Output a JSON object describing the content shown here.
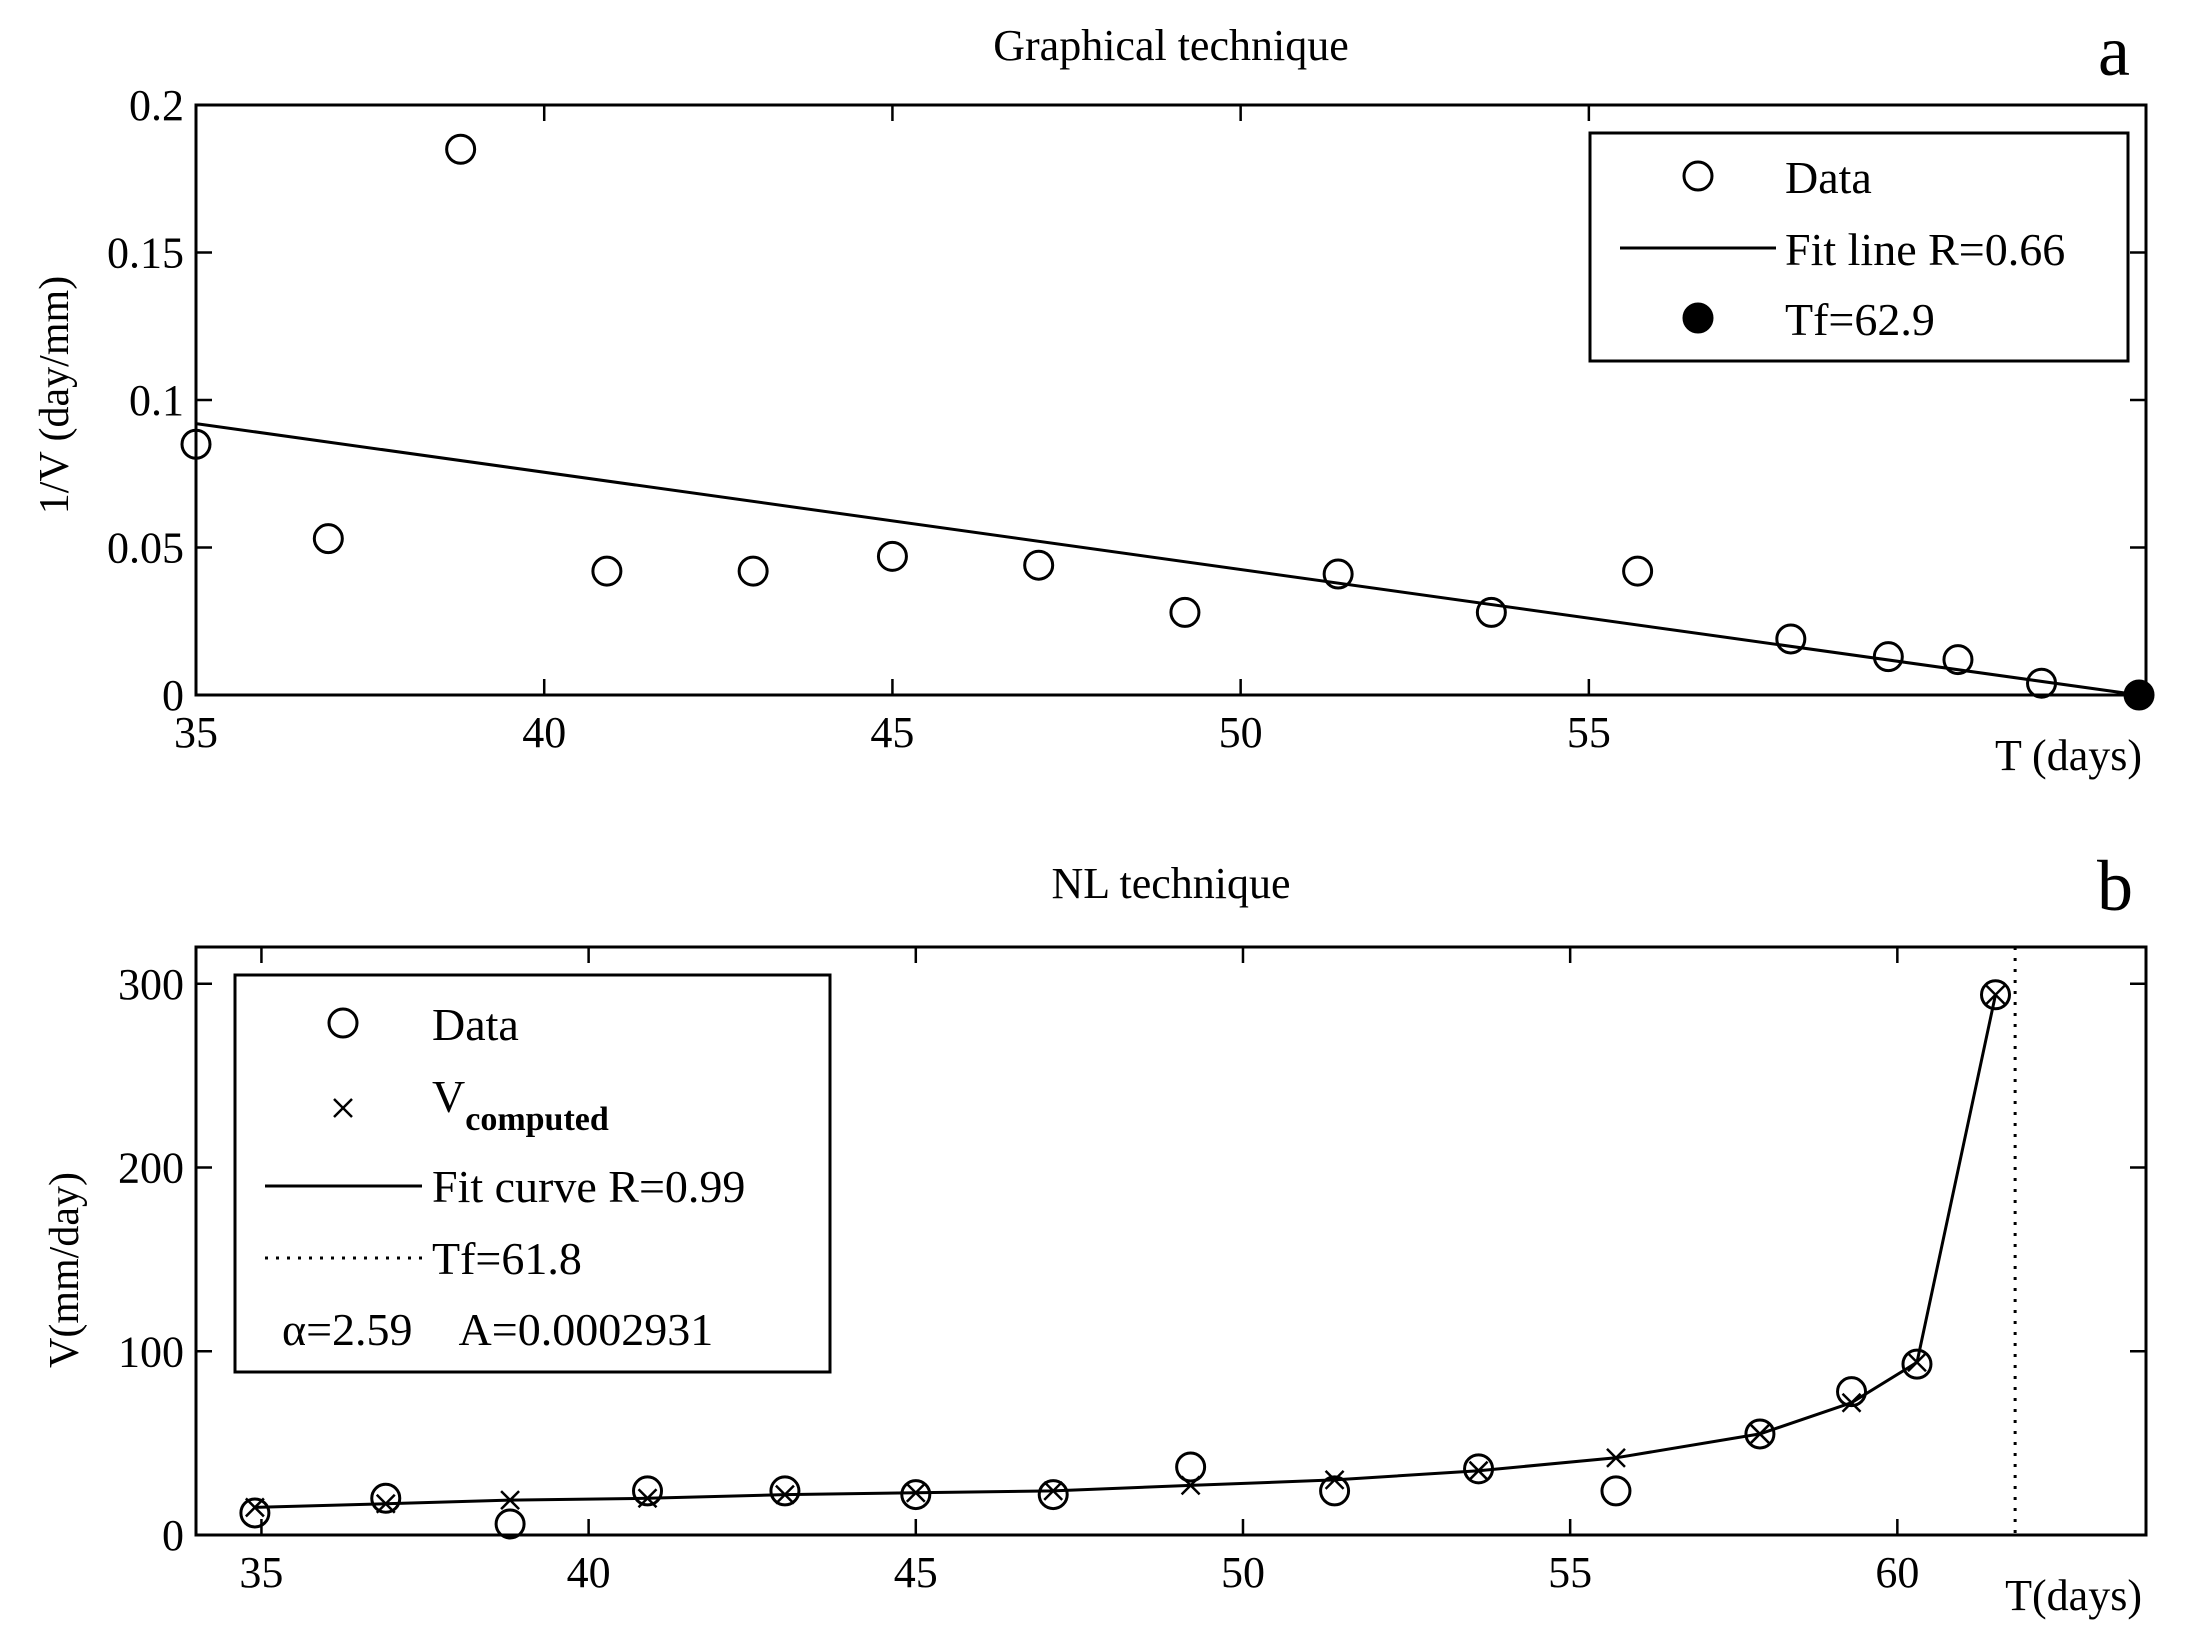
{
  "chart_data": [
    {
      "type": "scatter",
      "panel_letter": "a",
      "title": "Graphical technique",
      "xlabel": "T (days)",
      "ylabel": "1/V (day/mm)",
      "xlim": [
        35,
        63.0
      ],
      "ylim": [
        0,
        0.2
      ],
      "xticks": [
        35,
        40,
        45,
        50,
        55
      ],
      "yticks": [
        0,
        0.05,
        0.1,
        0.15,
        0.2
      ],
      "ytick_labels": [
        "0",
        "0.05",
        "0.1",
        "0.15",
        "0.2"
      ],
      "grid": false,
      "legend_position": "top-right",
      "series": [
        {
          "name": "Data",
          "marker": "circle-open",
          "points": [
            [
              35.0,
              0.085
            ],
            [
              36.9,
              0.053
            ],
            [
              38.8,
              0.185
            ],
            [
              40.9,
              0.042
            ],
            [
              43.0,
              0.042
            ],
            [
              45.0,
              0.047
            ],
            [
              47.1,
              0.044
            ],
            [
              49.2,
              0.028
            ],
            [
              51.4,
              0.041
            ],
            [
              53.6,
              0.028
            ],
            [
              55.7,
              0.042
            ],
            [
              57.9,
              0.019
            ],
            [
              59.3,
              0.013
            ],
            [
              60.3,
              0.012
            ],
            [
              61.5,
              0.004
            ]
          ]
        },
        {
          "name": "Fit line R=0.66",
          "style": "solid-line",
          "points": [
            [
              35.0,
              0.092
            ],
            [
              62.9,
              0.0
            ]
          ]
        },
        {
          "name": "Tf=62.9",
          "marker": "circle-filled",
          "points": [
            [
              62.9,
              0.0
            ]
          ]
        }
      ]
    },
    {
      "type": "scatter",
      "panel_letter": "b",
      "title": "NL technique",
      "xlabel": "T(days)",
      "ylabel": "V(mm/day)",
      "xlim": [
        34.0,
        63.8
      ],
      "ylim": [
        0,
        320
      ],
      "xticks": [
        35,
        40,
        45,
        50,
        55,
        60
      ],
      "yticks": [
        0,
        100,
        200,
        300
      ],
      "grid": false,
      "legend_position": "top-left",
      "annotation": "α=2.59    A=0.0002931",
      "series": [
        {
          "name": "Data",
          "marker": "circle-open",
          "points": [
            [
              34.9,
              12
            ],
            [
              36.9,
              20
            ],
            [
              38.8,
              6
            ],
            [
              40.9,
              24
            ],
            [
              43.0,
              24
            ],
            [
              45.0,
              22
            ],
            [
              47.1,
              22
            ],
            [
              49.2,
              37
            ],
            [
              51.4,
              24
            ],
            [
              53.6,
              36
            ],
            [
              55.7,
              24
            ],
            [
              57.9,
              55
            ],
            [
              59.3,
              78
            ],
            [
              60.3,
              93
            ],
            [
              61.5,
              294
            ]
          ]
        },
        {
          "name": "V",
          "name_subscript": "computed",
          "marker": "x",
          "points": [
            [
              34.9,
              15
            ],
            [
              36.9,
              17
            ],
            [
              38.8,
              19
            ],
            [
              40.9,
              20
            ],
            [
              43.0,
              22
            ],
            [
              45.0,
              23
            ],
            [
              47.1,
              24
            ],
            [
              49.2,
              27
            ],
            [
              51.4,
              30
            ],
            [
              53.6,
              35
            ],
            [
              55.7,
              42
            ],
            [
              57.9,
              55
            ],
            [
              59.3,
              72
            ],
            [
              60.3,
              94
            ],
            [
              61.5,
              294
            ]
          ]
        },
        {
          "name": "Fit curve R=0.99",
          "style": "solid-line",
          "alpha": 2.59,
          "A": 0.0002931,
          "tf": 61.8
        },
        {
          "name": "Tf=61.8",
          "style": "dotted-vertical",
          "x": 61.8
        }
      ]
    }
  ]
}
